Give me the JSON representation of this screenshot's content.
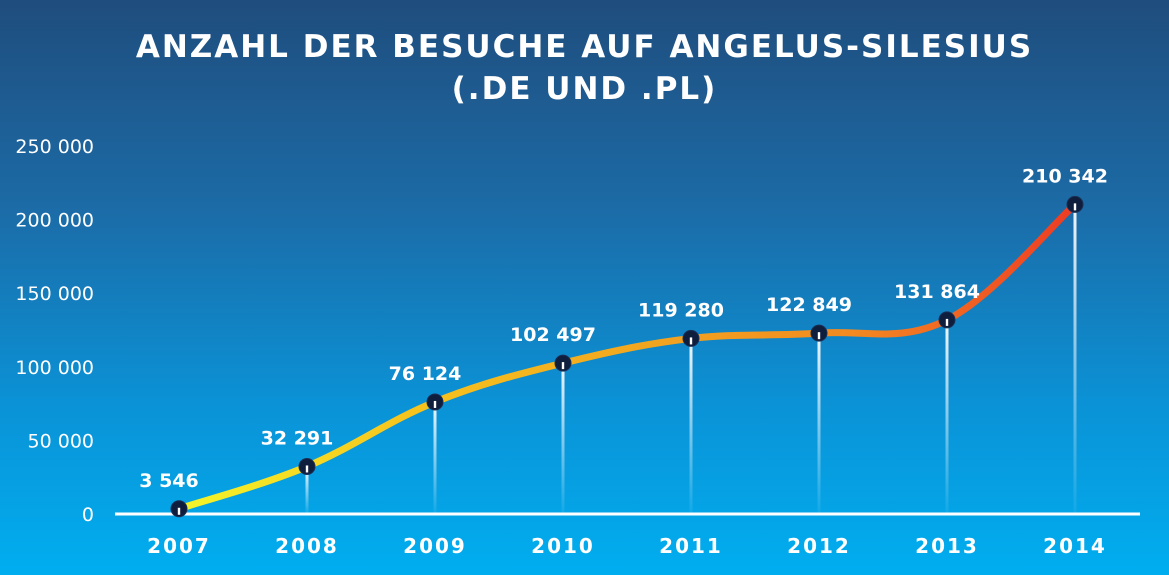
{
  "chart_data": {
    "type": "line",
    "title_line1": "ANZAHL DER BESUCHE AUF ANGELUS-SILESIUS",
    "title_line2": "(.DE UND .PL)",
    "xlabel": "",
    "ylabel": "",
    "categories": [
      "2007",
      "2008",
      "2009",
      "2010",
      "2011",
      "2012",
      "2013",
      "2014"
    ],
    "values": [
      3546,
      32291,
      76124,
      102497,
      119280,
      122849,
      131864,
      210342
    ],
    "data_labels": [
      "3 546",
      "32 291",
      "76 124",
      "102 497",
      "119 280",
      "122 849",
      "131 864",
      "210 342"
    ],
    "y_ticks": [
      0,
      50000,
      100000,
      150000,
      200000,
      250000
    ],
    "y_tick_labels": [
      "0",
      "50 000",
      "100 000",
      "150 000",
      "200 000",
      "250 000"
    ],
    "ylim": [
      0,
      250000
    ],
    "grid": false,
    "legend": "none",
    "line_gradient": [
      "#f4f62a",
      "#f7c51e",
      "#f2a81f",
      "#f28a21",
      "#ee3b24"
    ],
    "marker_color": "#0f1e3d",
    "background_top": "#1f4d7d",
    "background_bottom": "#00aef0"
  }
}
